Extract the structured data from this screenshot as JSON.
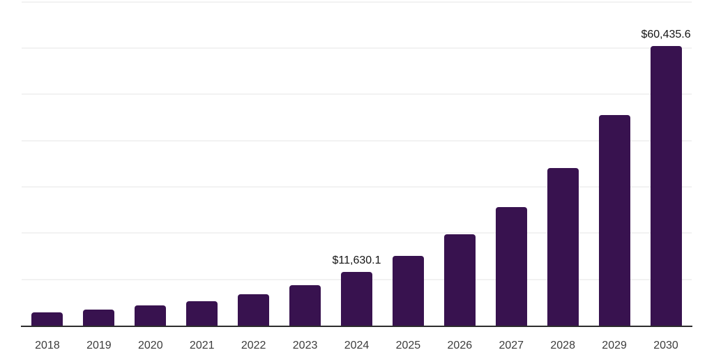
{
  "chart_data": {
    "type": "bar",
    "title": "",
    "xlabel": "",
    "ylabel": "",
    "categories": [
      "2018",
      "2019",
      "2020",
      "2021",
      "2022",
      "2023",
      "2024",
      "2025",
      "2026",
      "2027",
      "2028",
      "2029",
      "2030"
    ],
    "values": [
      2800,
      3500,
      4300,
      5300,
      6800,
      8800,
      11630.1,
      15100,
      19700,
      25700,
      34000,
      45600,
      60435.6
    ],
    "value_labels": [
      "",
      "",
      "",
      "",
      "",
      "",
      "$11,630.1",
      "",
      "",
      "",
      "",
      "",
      "$60,435.6"
    ],
    "ylim": [
      0,
      70400
    ],
    "gridline_step": 10000,
    "grid": true,
    "legend": false,
    "colors": {
      "bar": "#38124F",
      "gridline": "#F2F2F2",
      "axis": "#2D2D2D",
      "tick_label": "#3C3C3C",
      "value_label": "#141414",
      "background": "#FFFFFF"
    }
  }
}
